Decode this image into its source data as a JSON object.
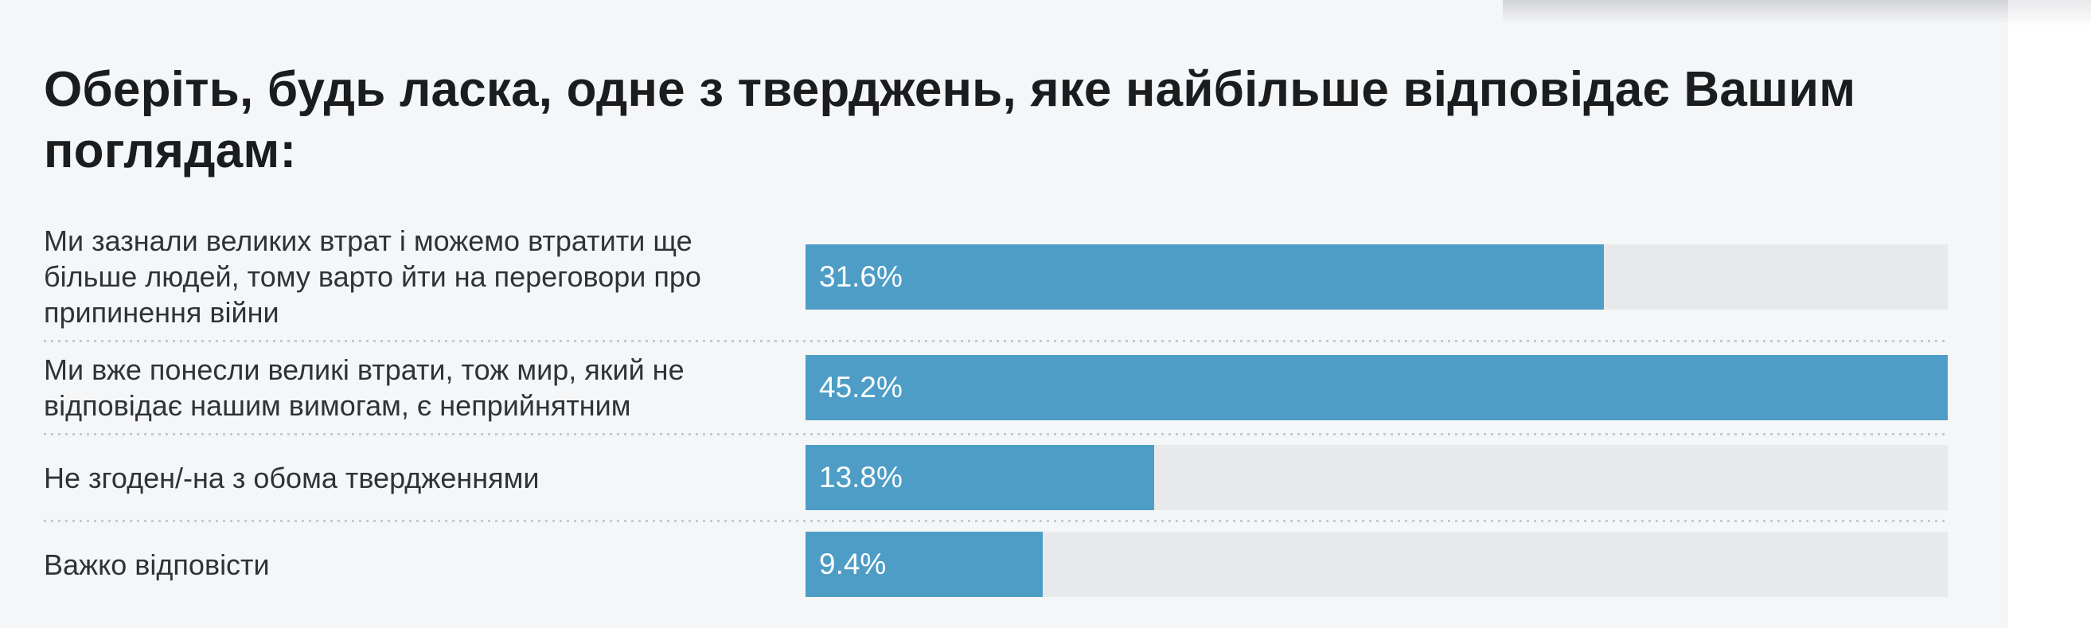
{
  "question": {
    "title": "Оберіть, будь ласка, одне з тверджень, яке найбільше відповідає Вашим поглядам:"
  },
  "chart_data": {
    "type": "bar",
    "orientation": "horizontal",
    "title": "Оберіть, будь ласка, одне з тверджень, яке найбільше відповідає Вашим поглядам:",
    "categories": [
      "Ми зазнали великих втрат і можемо втратити ще більше людей, тому варто йти на переговори про припинення війни",
      "Ми вже понесли великі втрати, тож мир, який не відповідає нашим вимогам, є неприйнятним",
      "Не згоден/-на з обома твердженнями",
      "Важко відповісти"
    ],
    "values": [
      31.6,
      45.2,
      13.8,
      9.4
    ],
    "value_labels": [
      "31.6%",
      "45.2%",
      "13.8%",
      "9.4%"
    ],
    "unit": "%",
    "axis_max": 45.2,
    "bars_scaled_to_max_value": true,
    "grid": false,
    "legend": false,
    "value_label_position": "inside-left",
    "colors": {
      "bar": "#4d9dc6",
      "track": "#e8e9ea",
      "value_text": "#ffffff"
    }
  },
  "style": {
    "page_background": "#ffffff",
    "card_background": "#f5f6f8",
    "title_color": "#1a1c1e",
    "label_color": "#2f3337",
    "separator_color": "#c7c9cb"
  }
}
